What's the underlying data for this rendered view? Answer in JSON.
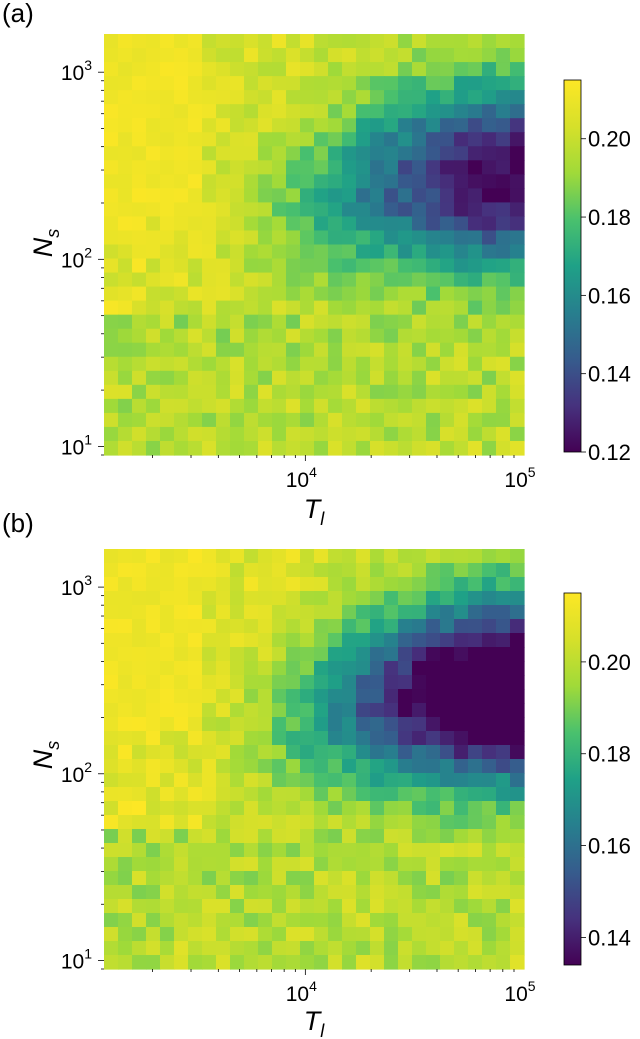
{
  "chart_data": [
    {
      "type": "heatmap",
      "panel_label": "(a)",
      "xlabel": "T",
      "xlabel_sub": "l",
      "ylabel": "N",
      "ylabel_sub": "s",
      "x_scale": "log",
      "y_scale": "log",
      "xlim": [
        1200,
        100000
      ],
      "ylim": [
        9,
        1600
      ],
      "x_ticks": [
        {
          "base": "10",
          "exp": "4",
          "value": 10000
        },
        {
          "base": "10",
          "exp": "5",
          "value": 100000
        }
      ],
      "y_ticks": [
        {
          "base": "10",
          "exp": "1",
          "value": 10
        },
        {
          "base": "10",
          "exp": "2",
          "value": 100
        },
        {
          "base": "10",
          "exp": "3",
          "value": 1000
        }
      ],
      "colormap": "viridis",
      "colorbar_range": [
        0.12,
        0.215
      ],
      "colorbar_ticks": [
        "0.12",
        "0.14",
        "0.16",
        "0.18",
        "0.20"
      ],
      "grid_size": [
        30,
        30
      ],
      "pattern": "Low values (purple, ~0.12-0.15) concentrated at large T_l and N_s between ~10^2 and 10^3; yellow (~0.21) at small T_l with large N_s and at small N_s",
      "seed": 7
    },
    {
      "type": "heatmap",
      "panel_label": "(b)",
      "xlabel": "T",
      "xlabel_sub": "l",
      "ylabel": "N",
      "ylabel_sub": "s",
      "x_scale": "log",
      "y_scale": "log",
      "xlim": [
        1200,
        100000
      ],
      "ylim": [
        9,
        1600
      ],
      "x_ticks": [
        {
          "base": "10",
          "exp": "4",
          "value": 10000
        },
        {
          "base": "10",
          "exp": "5",
          "value": 100000
        }
      ],
      "y_ticks": [
        {
          "base": "10",
          "exp": "1",
          "value": 10
        },
        {
          "base": "10",
          "exp": "2",
          "value": 100
        },
        {
          "base": "10",
          "exp": "3",
          "value": 1000
        }
      ],
      "colormap": "viridis",
      "colorbar_range": [
        0.134,
        0.215
      ],
      "colorbar_ticks": [
        "0.14",
        "0.16",
        "0.18",
        "0.20"
      ],
      "grid_size": [
        30,
        30
      ],
      "pattern": "Stronger low region (purple, ~0.135-0.145) at large T_l and N_s between ~10^2 and 10^3; yellow (~0.21) at small T_l with large N_s and at small N_s",
      "seed": 23
    }
  ]
}
